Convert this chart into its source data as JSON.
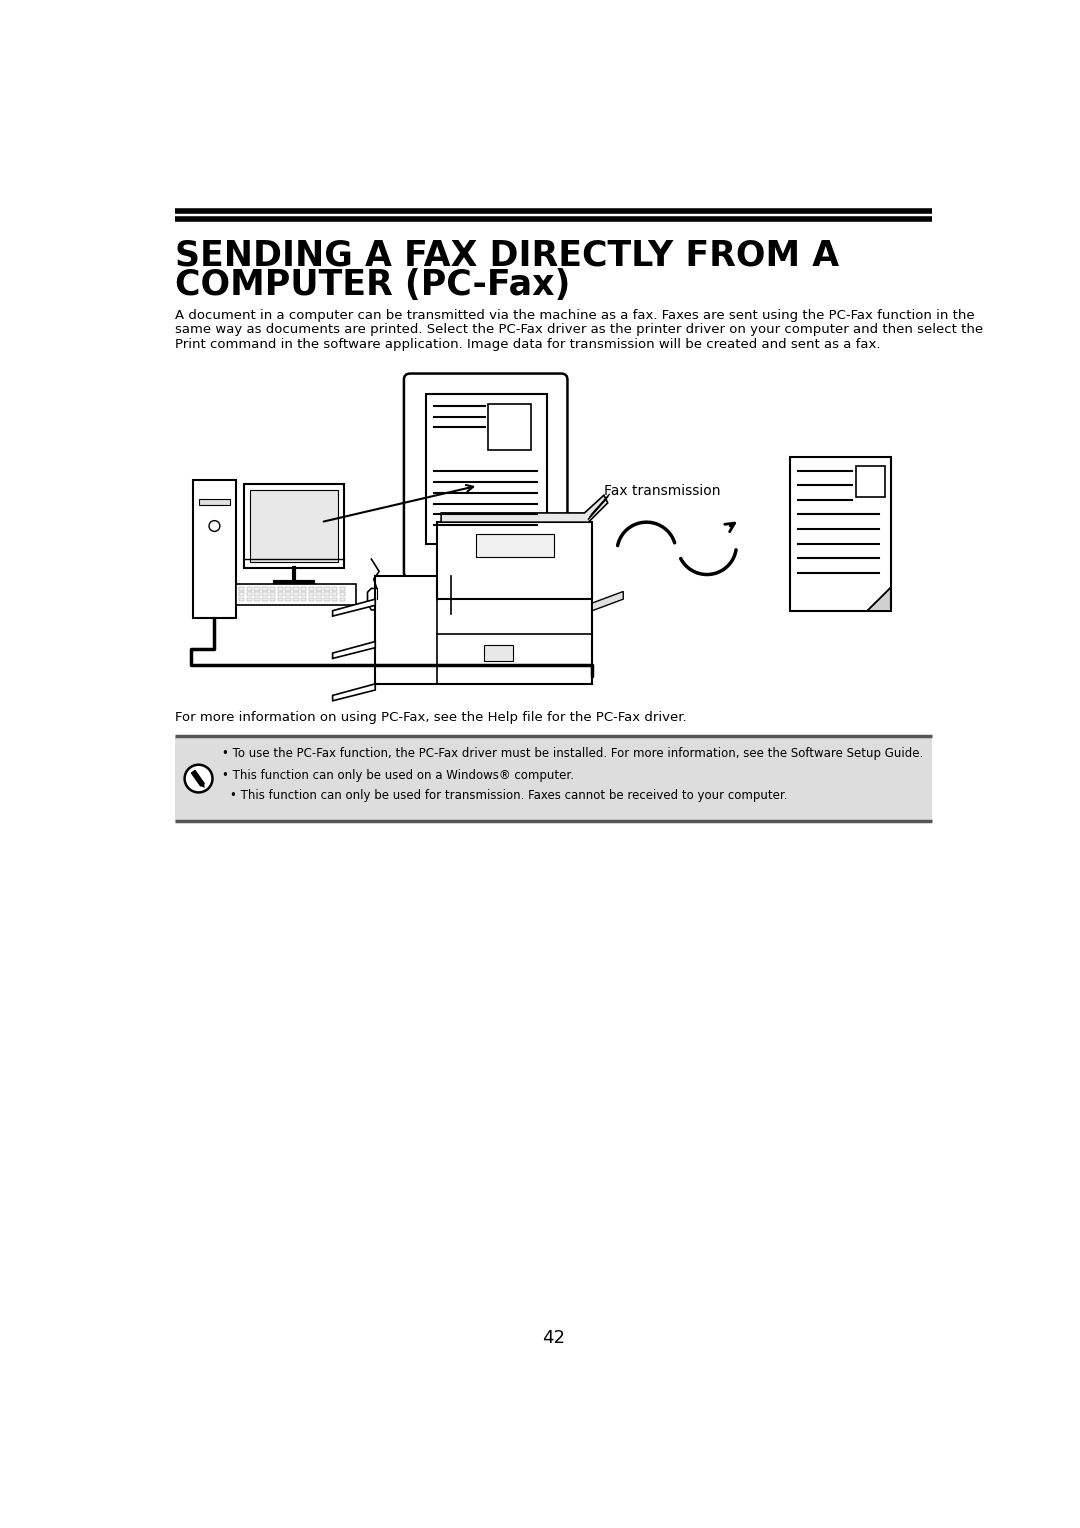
{
  "title_line1": "SENDING A FAX DIRECTLY FROM A",
  "title_line2": "COMPUTER (PC-Fax)",
  "body_text_line1": "A document in a computer can be transmitted via the machine as a fax. Faxes are sent using the PC-Fax function in the",
  "body_text_line2": "same way as documents are printed. Select the PC-Fax driver as the printer driver on your computer and then select the",
  "body_text_line3": "Print command in the software application. Image data for transmission will be created and sent as a fax.",
  "fax_label": "Fax transmission",
  "more_info_text": "For more information on using PC-Fax, see the Help file for the PC-Fax driver.",
  "note_bullet1": "• To use the PC-Fax function, the PC-Fax driver must be installed. For more information, see the Software Setup Guide.",
  "note_bullet2": "• This function can only be used on a Windows® computer.",
  "note_bullet3": "• This function can only be used for transmission. Faxes cannot be received to your computer.",
  "page_number": "42",
  "bg_color": "#ffffff",
  "note_bg_color": "#dddddd",
  "title_color": "#000000",
  "text_color": "#000000"
}
